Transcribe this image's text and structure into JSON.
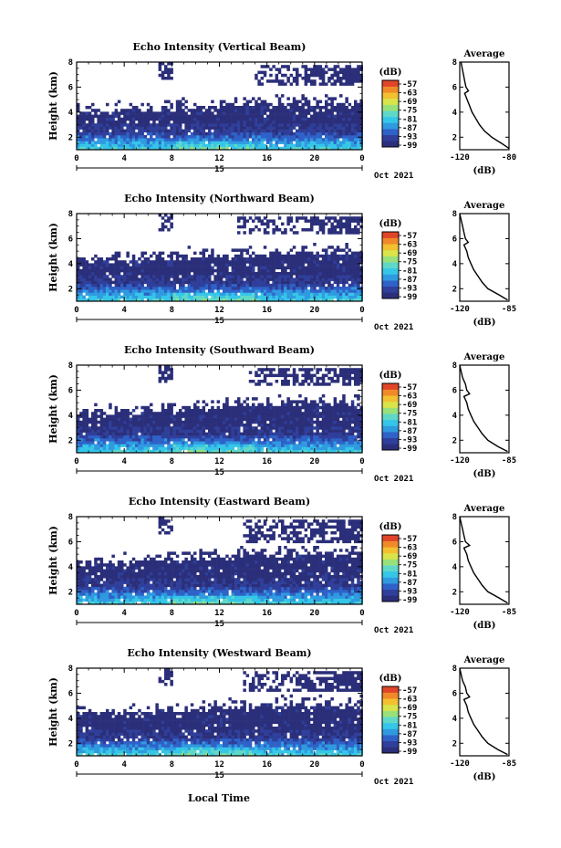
{
  "colors": {
    "background": "#ffffff",
    "echo_scale": [
      "#2b2f7a",
      "#2f3f9a",
      "#2f62c8",
      "#2f9ae0",
      "#35c6e8",
      "#5fd8c8",
      "#9ae07a",
      "#d8e44a",
      "#f2c030",
      "#f08a28",
      "#e0452a"
    ]
  },
  "shared": {
    "date_label": "Oct 2021",
    "x_day_label": "15",
    "local_time_label": "Local Time",
    "x_ticks": [
      "0",
      "4",
      "8",
      "12",
      "16",
      "20",
      "0"
    ],
    "y_ticks": [
      "2",
      "4",
      "6",
      "8"
    ],
    "colorbar_label": "(dB)"
  },
  "chart_data": [
    {
      "type": "heatmap",
      "title": "Echo Intensity (Vertical Beam)",
      "ylabel": "Height (km)",
      "xlim": [
        0,
        24
      ],
      "ylim": [
        1,
        8
      ],
      "colorbar": {
        "unit": "(dB)",
        "levels": [
          "-57",
          "-63",
          "-69",
          "-75",
          "-81",
          "-87",
          "-93",
          "-99"
        ]
      },
      "coverage": {
        "morning_top_km": 4.0,
        "afternoon_top_km": 4.6,
        "upper_layer_km": [
          6.1,
          7.8
        ],
        "upper_layer_start_h": 14.5
      },
      "average_profile": {
        "title": "Average",
        "xlabel": "(dB)",
        "x_ticks": [
          "-120",
          "-80"
        ],
        "xlim": [
          -120,
          -80
        ],
        "ylim": [
          1,
          8
        ],
        "y_ticks": [
          "2",
          "4",
          "6",
          "8"
        ],
        "height_km": [
          1.1,
          1.5,
          2.0,
          2.5,
          3.0,
          3.5,
          4.0,
          4.5,
          5.0,
          5.5,
          5.7,
          6.0,
          6.5,
          7.0,
          7.5,
          8.0
        ],
        "db": [
          -80,
          -86,
          -94,
          -100,
          -104,
          -107,
          -110,
          -112,
          -114,
          -116,
          -113,
          -115,
          -116,
          -117,
          -118,
          -119
        ]
      }
    },
    {
      "type": "heatmap",
      "title": "Echo Intensity (Northward Beam)",
      "ylabel": "Height (km)",
      "xlim": [
        0,
        24
      ],
      "ylim": [
        1,
        8
      ],
      "colorbar": {
        "unit": "(dB)",
        "levels": [
          "-57",
          "-63",
          "-69",
          "-75",
          "-81",
          "-87",
          "-93",
          "-99"
        ]
      },
      "coverage": {
        "morning_top_km": 4.1,
        "afternoon_top_km": 4.8,
        "upper_layer_km": [
          6.3,
          7.8
        ],
        "upper_layer_start_h": 13.5
      },
      "average_profile": {
        "title": "Average",
        "xlabel": "(dB)",
        "x_ticks": [
          "-120",
          "-85"
        ],
        "xlim": [
          -120,
          -85
        ],
        "ylim": [
          1,
          8
        ],
        "y_ticks": [
          "2",
          "4",
          "6",
          "8"
        ],
        "height_km": [
          1.1,
          1.5,
          2.0,
          2.5,
          3.0,
          3.5,
          4.0,
          4.5,
          5.0,
          5.5,
          5.7,
          6.0,
          6.5,
          7.0,
          7.5,
          8.0
        ],
        "db": [
          -86,
          -92,
          -100,
          -104,
          -107,
          -110,
          -112,
          -114,
          -115,
          -117,
          -114,
          -116,
          -117,
          -118,
          -119,
          -120
        ]
      }
    },
    {
      "type": "heatmap",
      "title": "Echo Intensity (Southward Beam)",
      "ylabel": "Height (km)",
      "xlim": [
        0,
        24
      ],
      "ylim": [
        1,
        8
      ],
      "colorbar": {
        "unit": "(dB)",
        "levels": [
          "-57",
          "-63",
          "-69",
          "-75",
          "-81",
          "-87",
          "-93",
          "-99"
        ]
      },
      "coverage": {
        "morning_top_km": 4.0,
        "afternoon_top_km": 4.9,
        "upper_layer_km": [
          6.3,
          7.8
        ],
        "upper_layer_start_h": 14.5
      },
      "average_profile": {
        "title": "Average",
        "xlabel": "(dB)",
        "x_ticks": [
          "-120",
          "-85"
        ],
        "xlim": [
          -120,
          -85
        ],
        "ylim": [
          1,
          8
        ],
        "y_ticks": [
          "2",
          "4",
          "6",
          "8"
        ],
        "height_km": [
          1.1,
          1.5,
          2.0,
          2.5,
          3.0,
          3.5,
          4.0,
          4.5,
          5.0,
          5.5,
          5.7,
          6.0,
          6.5,
          7.0,
          7.5,
          8.0
        ],
        "db": [
          -86,
          -93,
          -100,
          -104,
          -107,
          -110,
          -112,
          -114,
          -115,
          -117,
          -113,
          -115,
          -116,
          -118,
          -119,
          -120
        ]
      }
    },
    {
      "type": "heatmap",
      "title": "Echo Intensity (Eastward Beam)",
      "ylabel": "Height (km)",
      "xlim": [
        0,
        24
      ],
      "ylim": [
        1,
        8
      ],
      "colorbar": {
        "unit": "(dB)",
        "levels": [
          "-57",
          "-63",
          "-69",
          "-75",
          "-81",
          "-87",
          "-93",
          "-99"
        ]
      },
      "coverage": {
        "morning_top_km": 4.1,
        "afternoon_top_km": 4.9,
        "upper_layer_km": [
          6.0,
          7.8
        ],
        "upper_layer_start_h": 14.0
      },
      "average_profile": {
        "title": "Average",
        "xlabel": "(dB)",
        "x_ticks": [
          "-120",
          "-85"
        ],
        "xlim": [
          -120,
          -85
        ],
        "ylim": [
          1,
          8
        ],
        "y_ticks": [
          "2",
          "4",
          "6",
          "8"
        ],
        "height_km": [
          1.1,
          1.5,
          2.0,
          2.5,
          3.0,
          3.5,
          4.0,
          4.5,
          5.0,
          5.5,
          5.7,
          6.0,
          6.5,
          7.0,
          7.5,
          8.0
        ],
        "db": [
          -86,
          -92,
          -100,
          -104,
          -107,
          -110,
          -112,
          -114,
          -115,
          -117,
          -113,
          -116,
          -117,
          -118,
          -119,
          -120
        ]
      }
    },
    {
      "type": "heatmap",
      "title": "Echo Intensity (Westward Beam)",
      "ylabel": "Height (km)",
      "xlim": [
        0,
        24
      ],
      "ylim": [
        1,
        8
      ],
      "colorbar": {
        "unit": "(dB)",
        "levels": [
          "-57",
          "-63",
          "-69",
          "-75",
          "-81",
          "-87",
          "-93",
          "-99"
        ]
      },
      "coverage": {
        "morning_top_km": 4.2,
        "afternoon_top_km": 5.0,
        "upper_layer_km": [
          6.1,
          7.8
        ],
        "upper_layer_start_h": 14.0
      },
      "average_profile": {
        "title": "Average",
        "xlabel": "(dB)",
        "x_ticks": [
          "-120",
          "-85"
        ],
        "xlim": [
          -120,
          -85
        ],
        "ylim": [
          1,
          8
        ],
        "y_ticks": [
          "2",
          "4",
          "6",
          "8"
        ],
        "height_km": [
          1.1,
          1.5,
          2.0,
          2.5,
          3.0,
          3.5,
          4.0,
          4.5,
          5.0,
          5.5,
          5.7,
          6.0,
          6.5,
          7.0,
          7.5,
          8.0
        ],
        "db": [
          -86,
          -93,
          -100,
          -104,
          -107,
          -110,
          -112,
          -114,
          -115,
          -117,
          -113,
          -115,
          -116,
          -118,
          -119,
          -120
        ]
      }
    }
  ]
}
